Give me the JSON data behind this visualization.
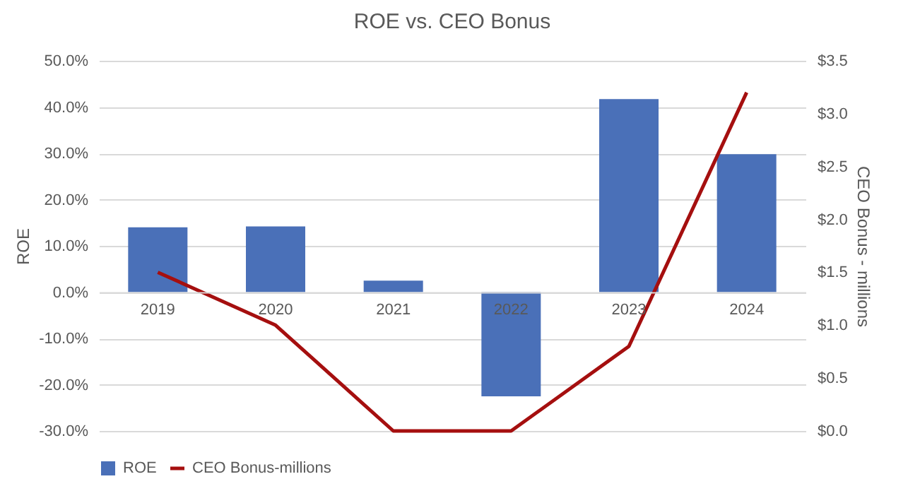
{
  "chart_data": {
    "type": "bar",
    "title": "ROE vs. CEO Bonus",
    "ylabel": "ROE",
    "y2label": "CEO Bonus - millions",
    "categories": [
      "2019",
      "2020",
      "2021",
      "2022",
      "2023",
      "2024"
    ],
    "series": [
      {
        "name": "ROE",
        "color": "#4a70b8",
        "values": [
          14.0,
          14.2,
          2.5,
          -22.5,
          41.7,
          29.8
        ]
      },
      {
        "name": "CEO Bonus-millions",
        "type": "line",
        "axis": "y2",
        "color": "#a50f0f",
        "values": [
          1.5,
          1.0,
          0,
          0,
          0.8,
          3.2
        ]
      }
    ],
    "ylim": [
      -30,
      50
    ],
    "yticks": [
      {
        "value": -30,
        "label": "-30.0%"
      },
      {
        "value": -20,
        "label": "-20.0%"
      },
      {
        "value": -10,
        "label": "-10.0%"
      },
      {
        "value": 0,
        "label": "0.0%"
      },
      {
        "value": 10,
        "label": "10.0%"
      },
      {
        "value": 20,
        "label": "20.0%"
      },
      {
        "value": 30,
        "label": "30.0%"
      },
      {
        "value": 40,
        "label": "40.0%"
      },
      {
        "value": 50,
        "label": "50.0%"
      }
    ],
    "y2lim": [
      0,
      3.5
    ],
    "y2ticks": [
      {
        "value": 0,
        "label": "$0.0"
      },
      {
        "value": 0.5,
        "label": "$0.5"
      },
      {
        "value": 1,
        "label": "$1.0"
      },
      {
        "value": 1.5,
        "label": "$1.5"
      },
      {
        "value": 2,
        "label": "$2.0"
      },
      {
        "value": 2.5,
        "label": "$2.5"
      },
      {
        "value": 3,
        "label": "$3.0"
      },
      {
        "value": 3.5,
        "label": "$3.5"
      }
    ],
    "grid": "y",
    "legend": "bottom"
  }
}
